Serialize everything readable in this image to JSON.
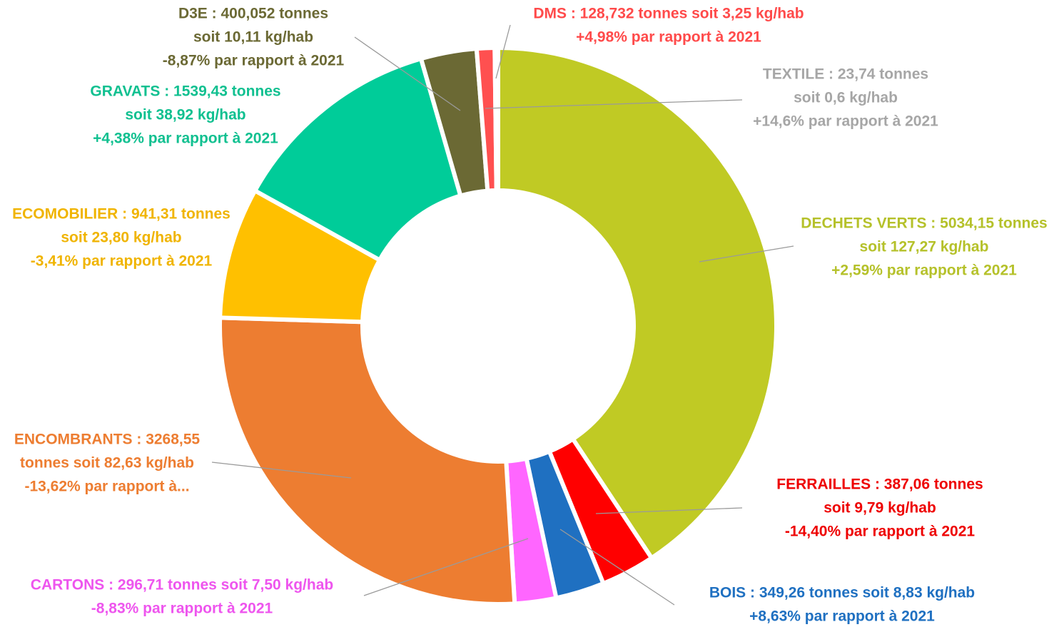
{
  "chart_data": {
    "type": "donut",
    "labels": [
      [
        "DECHETS VERTS : 5034,15 tonnes",
        "soit 127,27 kg/hab",
        "+2,59% par rapport à 2021"
      ],
      [
        "FERRAILLES  : 387,06 tonnes",
        "soit 9,79 kg/hab",
        "-14,40% par rapport à 2021"
      ],
      [
        "BOIS : 349,26 tonnes soit 8,83 kg/hab",
        "+8,63% par rapport à 2021"
      ],
      [
        "CARTONS : 296,71 tonnes soit 7,50 kg/hab",
        "-8,83% par rapport à 2021"
      ],
      [
        "ENCOMBRANTS : 3268,55",
        "tonnes soit 82,63 kg/hab",
        "-13,62% par rapport à..."
      ],
      [
        "ECOMOBILIER : 941,31 tonnes",
        "soit 23,80 kg/hab",
        "-3,41% par rapport à 2021"
      ],
      [
        "GRAVATS : 1539,43 tonnes",
        "soit 38,92 kg/hab",
        "+4,38% par rapport à 2021"
      ],
      [
        "D3E : 400,052 tonnes",
        "soit 10,11 kg/hab",
        "-8,87% par rapport à 2021"
      ],
      [
        "DMS : 128,732 tonnes soit 3,25 kg/hab",
        "+4,98% par rapport à 2021"
      ],
      [
        "TEXTILE : 23,74 tonnes",
        "soit 0,6 kg/hab",
        "+14,6% par rapport à 2021"
      ]
    ],
    "values": [
      5034.15,
      387.06,
      349.26,
      296.71,
      3268.55,
      941.31,
      1539.43,
      400.052,
      128.732,
      23.74
    ],
    "colors": [
      "#c0ca24",
      "#ff0000",
      "#1f70c1",
      "#ff66ff",
      "#ed7d31",
      "#ffc000",
      "#00cc99",
      "#6b6934",
      "#ff5050",
      "#c8c8c8"
    ],
    "label_colors": [
      "#b5c12a",
      "#ee0000",
      "#1f70c1",
      "#ee55ee",
      "#ed7d31",
      "#f0b400",
      "#10c090",
      "#6b6934",
      "#ff4a4a",
      "#a6a6a6"
    ]
  }
}
